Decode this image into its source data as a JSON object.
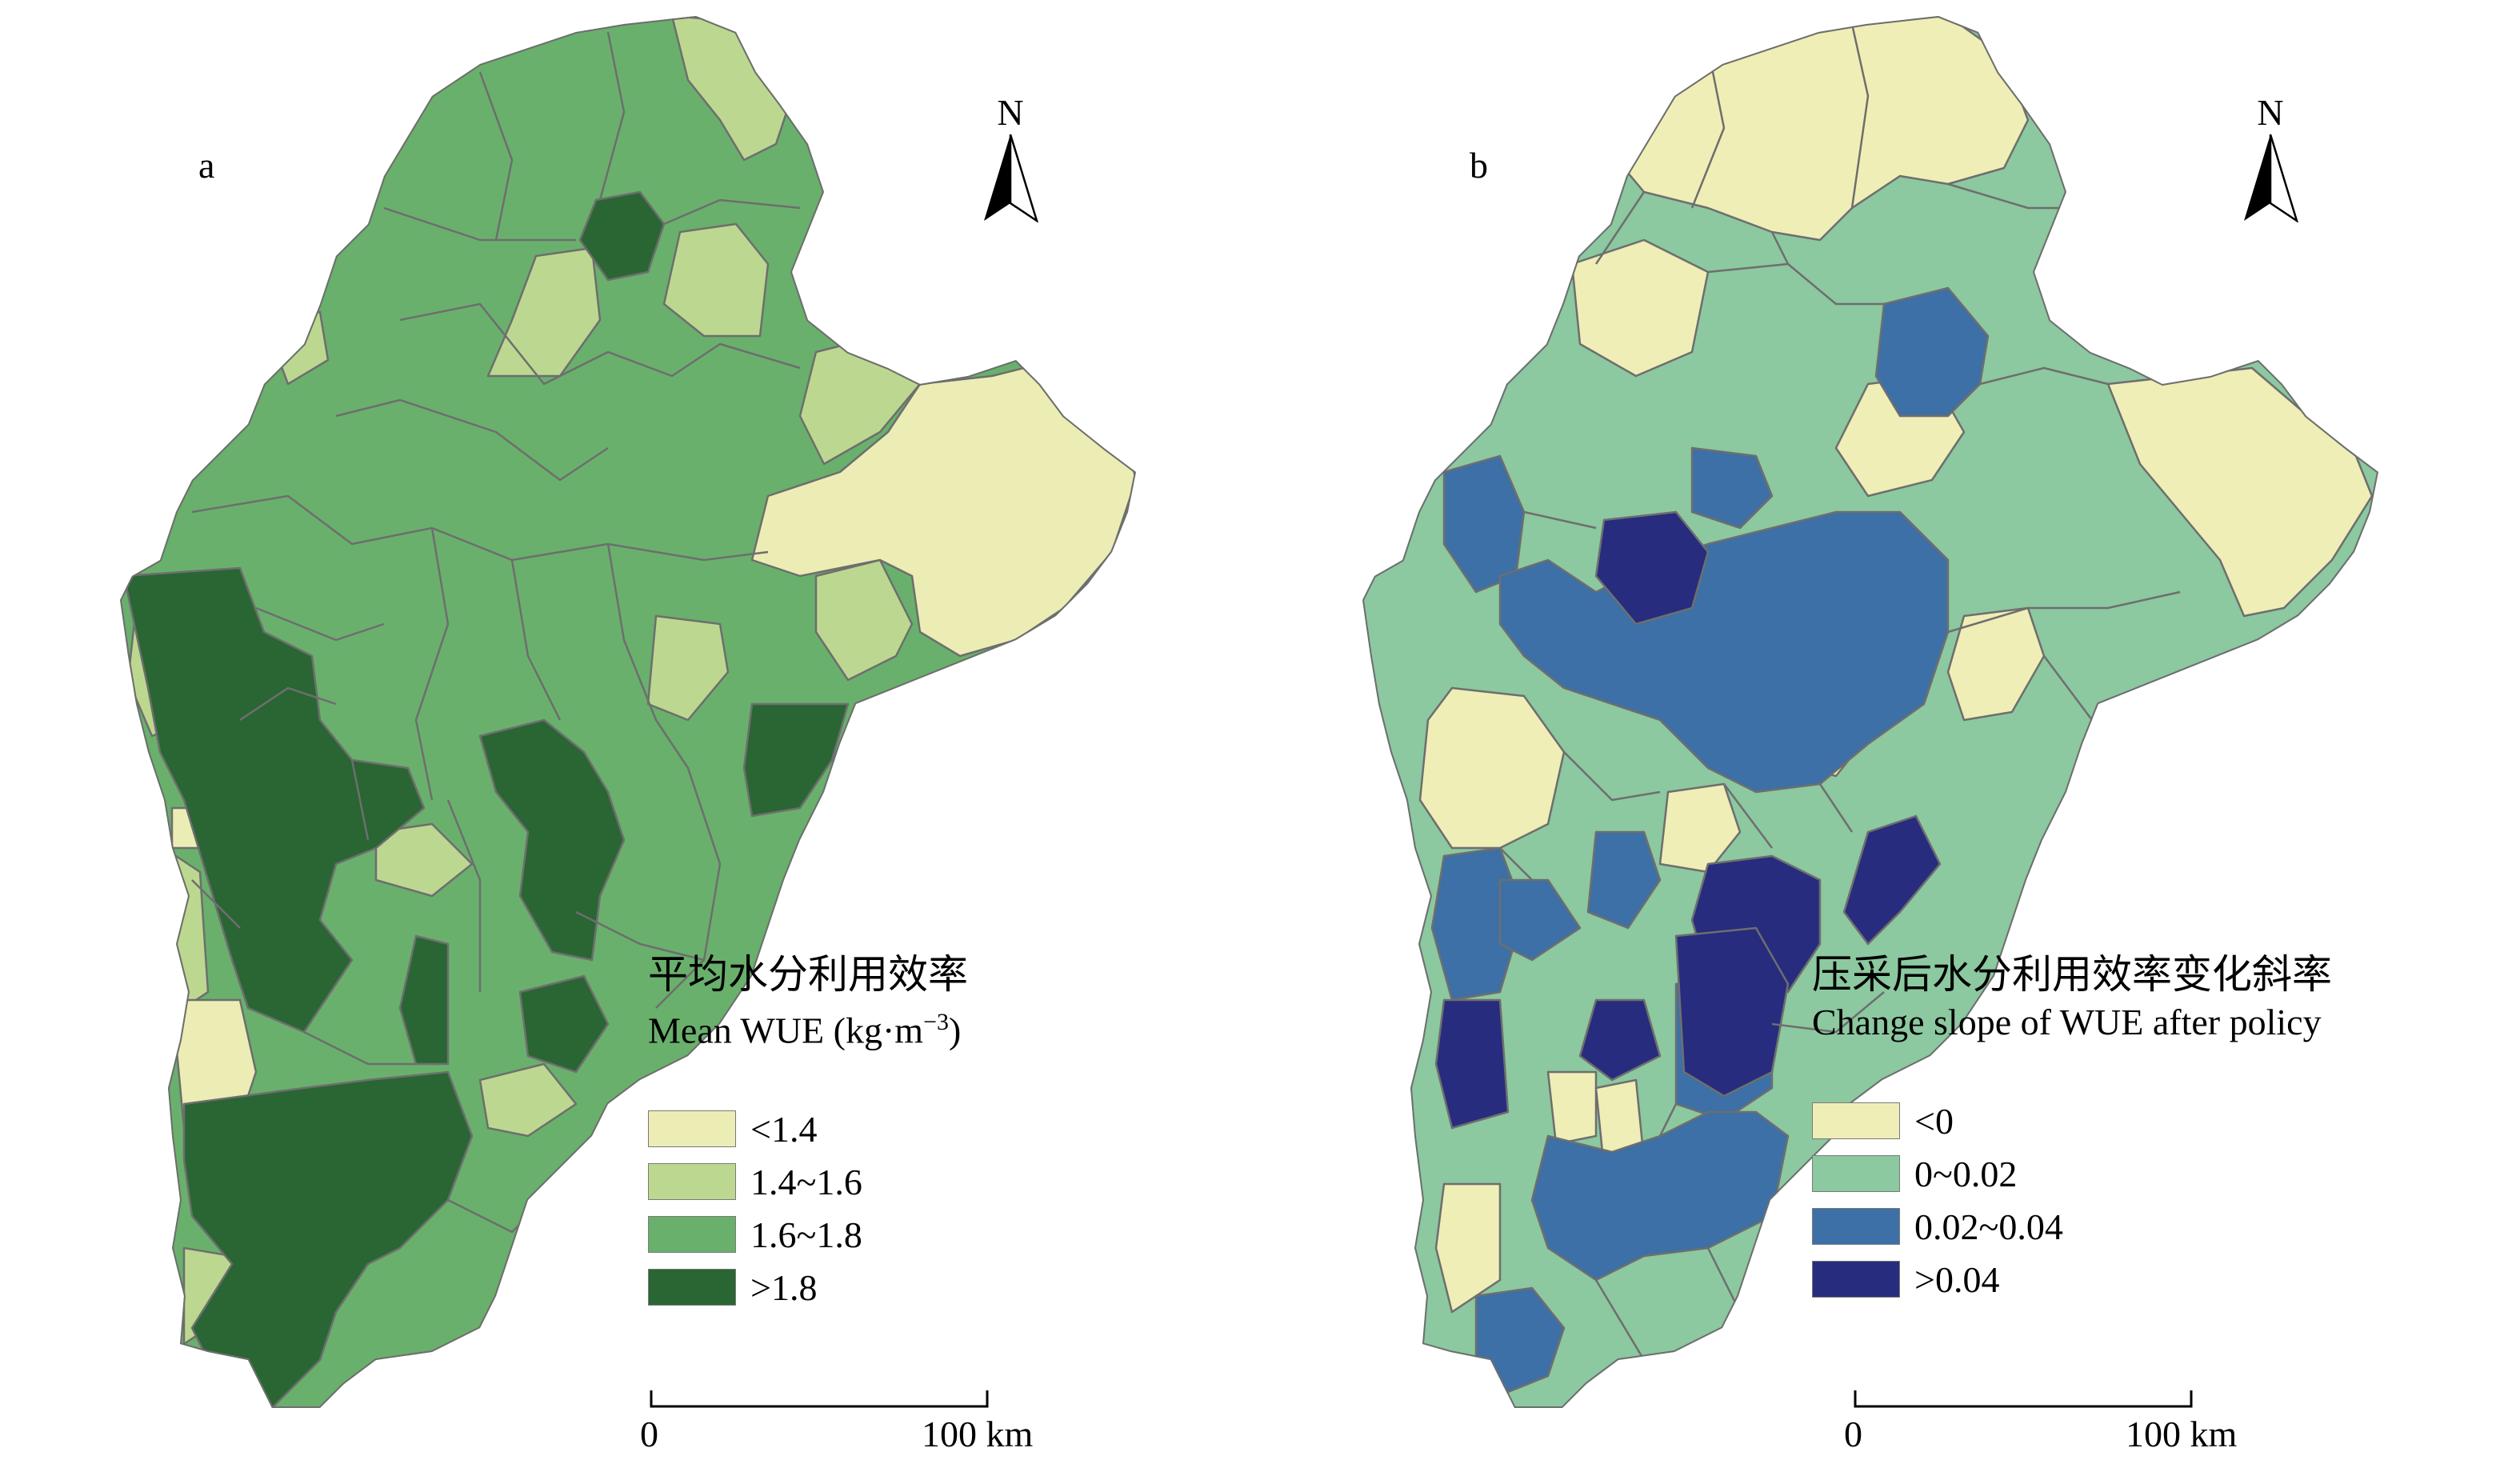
{
  "maps": [
    {
      "panel_label": "a",
      "north_label": "N",
      "legend": {
        "title_cn": "平均水分利用效率",
        "title_en_prefix": "Mean WUE (kg·m",
        "title_en_exp": "−3",
        "title_en_suffix": ")",
        "classes": [
          {
            "label": "<1.4",
            "color": "#ecedb4"
          },
          {
            "label": "1.4~1.6",
            "color": "#bcd890"
          },
          {
            "label": "1.6~1.8",
            "color": "#69b06c"
          },
          {
            "label": ">1.8",
            "color": "#2a6534"
          }
        ]
      },
      "scale": {
        "zero": "0",
        "max": "100 km"
      }
    },
    {
      "panel_label": "b",
      "north_label": "N",
      "legend": {
        "title_cn": "压采后水分利用效率变化斜率",
        "title_en": "Change slope of WUE after policy",
        "classes": [
          {
            "label": "<0",
            "color": "#eeeeb6"
          },
          {
            "label": "0~0.02",
            "color": "#8cc8a0"
          },
          {
            "label": "0.02~0.04",
            "color": "#3c70a6"
          },
          {
            "label": ">0.04",
            "color": "#272c7e"
          }
        ]
      },
      "scale": {
        "zero": "0",
        "max": "100 km"
      }
    }
  ]
}
